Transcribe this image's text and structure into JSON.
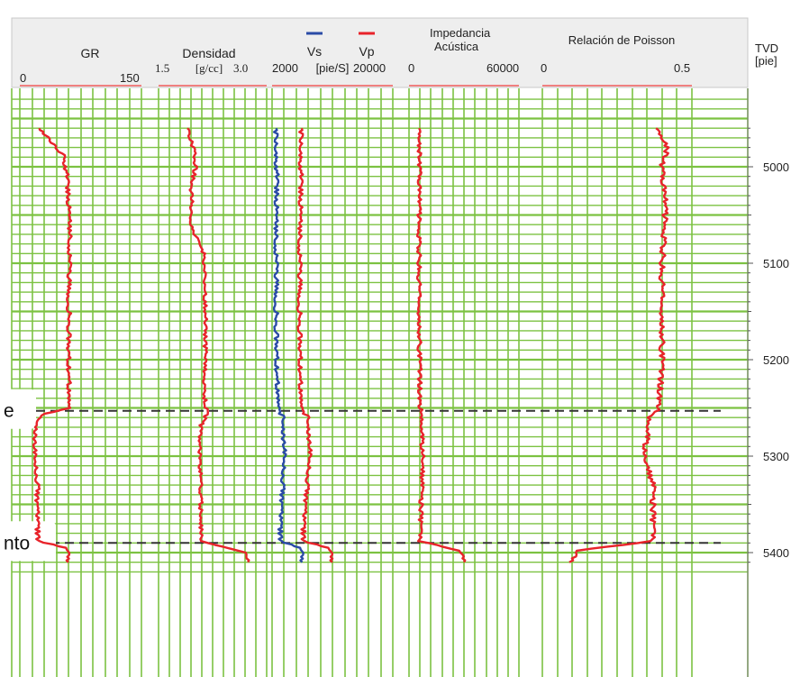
{
  "colors": {
    "header_bg": "#eeeeee",
    "grid": "#7cc242",
    "curve_red": "#e8232a",
    "curve_blue": "#2a4ba6",
    "scale_bar": "#f08080",
    "marker_line": "#333333"
  },
  "header": {
    "tracks": [
      {
        "title": "GR",
        "min_label": "0",
        "max_label": "150"
      },
      {
        "title": "Densidad",
        "min_label": "1.5",
        "unit_label": "[g/cc]",
        "max_label": "3.0"
      },
      {
        "legend_vs": "Vs",
        "legend_vp": "Vp",
        "min_label": "2000",
        "unit_label": "[pie/S]",
        "max_label": "20000"
      },
      {
        "title_line1": "Impedancia",
        "title_line2": "Acústica",
        "min_label": "0",
        "max_label": "60000"
      },
      {
        "title": "Relación de Poisson",
        "min_label": "0",
        "max_label": "0.5"
      }
    ],
    "depth_title": "TVD",
    "depth_unit": "[pie]"
  },
  "depth_axis": {
    "tick_labels": [
      "5000",
      "5100",
      "5200",
      "5300",
      "5400"
    ]
  },
  "markers": [
    {
      "label": "e",
      "depth": 5253
    },
    {
      "label": "nto",
      "depth": 5390
    }
  ],
  "chart_data": {
    "type": "line",
    "title": "",
    "y_axis": {
      "label": "TVD",
      "unit": "[pie]",
      "range": [
        4950,
        5420
      ],
      "inverted": true
    },
    "grid": true,
    "series": [
      {
        "name": "GR",
        "track": "GR",
        "range": [
          0,
          150
        ],
        "depth": [
          4960,
          4975,
          4990,
          5010,
          5040,
          5070,
          5100,
          5130,
          5160,
          5190,
          5220,
          5250,
          5258,
          5270,
          5290,
          5310,
          5330,
          5350,
          5370,
          5388,
          5395,
          5410
        ],
        "values": [
          24,
          40,
          55,
          58,
          60,
          62,
          61,
          60,
          61,
          60,
          61,
          60,
          24,
          20,
          18,
          20,
          22,
          21,
          22,
          22,
          58,
          60
        ]
      },
      {
        "name": "Densidad",
        "track": "Densidad",
        "range": [
          1.5,
          3.0
        ],
        "depth": [
          4960,
          4980,
          5000,
          5020,
          5040,
          5055,
          5070,
          5090,
          5120,
          5150,
          5180,
          5210,
          5240,
          5255,
          5270,
          5300,
          5330,
          5360,
          5388,
          5400,
          5410
        ],
        "values": [
          1.9,
          1.98,
          2.02,
          1.95,
          1.96,
          1.92,
          2.0,
          2.12,
          2.14,
          2.15,
          2.15,
          2.14,
          2.14,
          2.18,
          2.08,
          2.08,
          2.08,
          2.09,
          2.09,
          2.72,
          2.74
        ]
      },
      {
        "name": "Vs",
        "track": "Vs/Vp",
        "range": [
          2000,
          20000
        ],
        "depth": [
          4960,
          5000,
          5050,
          5100,
          5150,
          5200,
          5250,
          5260,
          5280,
          5300,
          5320,
          5340,
          5360,
          5388,
          5395,
          5410
        ],
        "values": [
          2600,
          2700,
          2600,
          2600,
          2600,
          2700,
          2900,
          3600,
          3700,
          3900,
          3700,
          3500,
          3300,
          3200,
          6300,
          6500
        ]
      },
      {
        "name": "Vp",
        "track": "Vs/Vp",
        "range": [
          2000,
          20000
        ],
        "depth": [
          4960,
          5000,
          5050,
          5100,
          5150,
          5200,
          5250,
          5260,
          5280,
          5300,
          5320,
          5340,
          5360,
          5388,
          5395,
          5410
        ],
        "values": [
          6400,
          6300,
          6200,
          6100,
          6100,
          6200,
          6300,
          7300,
          7500,
          7700,
          7400,
          7100,
          6800,
          6600,
          10500,
          11000
        ]
      },
      {
        "name": "Impedancia Acústica",
        "track": "Impedancia Acústica",
        "range": [
          0,
          60000
        ],
        "depth": [
          4960,
          5000,
          5050,
          5100,
          5150,
          5200,
          5250,
          5258,
          5280,
          5300,
          5320,
          5340,
          5360,
          5388,
          5398,
          5410
        ],
        "values": [
          5500,
          6000,
          5500,
          5500,
          5500,
          5800,
          6000,
          7200,
          7000,
          7500,
          7200,
          6800,
          6500,
          6000,
          28000,
          30000
        ]
      },
      {
        "name": "Relación de Poisson",
        "track": "Relación de Poisson",
        "range": [
          0,
          0.5
        ],
        "depth": [
          4960,
          4980,
          5000,
          5030,
          5060,
          5100,
          5150,
          5200,
          5250,
          5260,
          5280,
          5300,
          5330,
          5360,
          5388,
          5398,
          5410
        ],
        "values": [
          0.38,
          0.42,
          0.4,
          0.41,
          0.41,
          0.4,
          0.4,
          0.4,
          0.39,
          0.36,
          0.35,
          0.34,
          0.37,
          0.37,
          0.37,
          0.12,
          0.09
        ]
      }
    ]
  }
}
